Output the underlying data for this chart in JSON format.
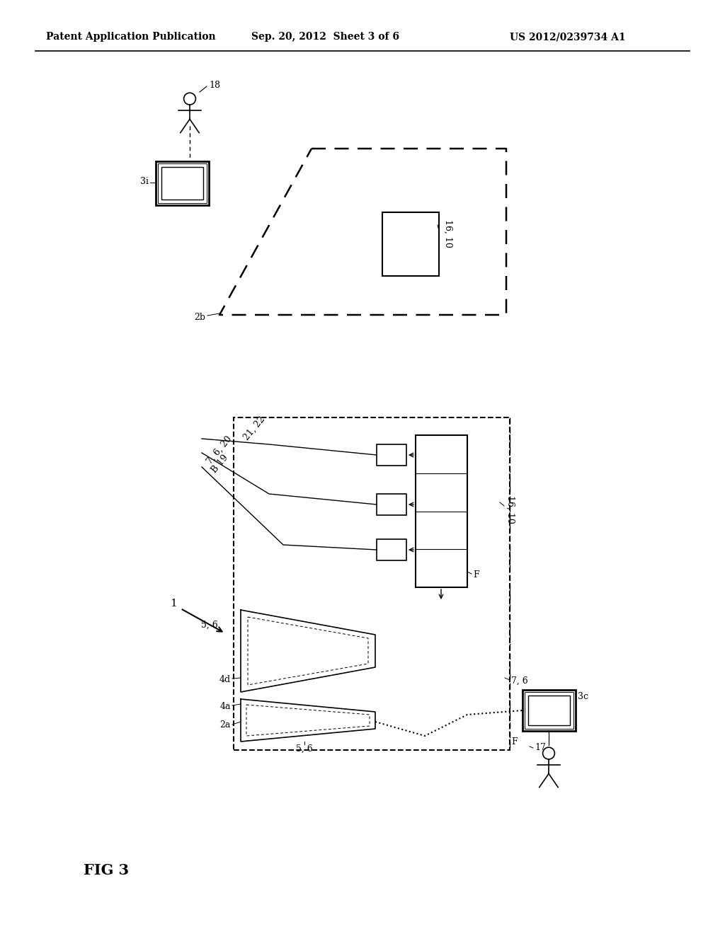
{
  "bg_color": "#ffffff",
  "header_left": "Patent Application Publication",
  "header_mid": "Sep. 20, 2012  Sheet 3 of 6",
  "header_right": "US 2012/0239734 A1",
  "fig_label": "FIG 3"
}
